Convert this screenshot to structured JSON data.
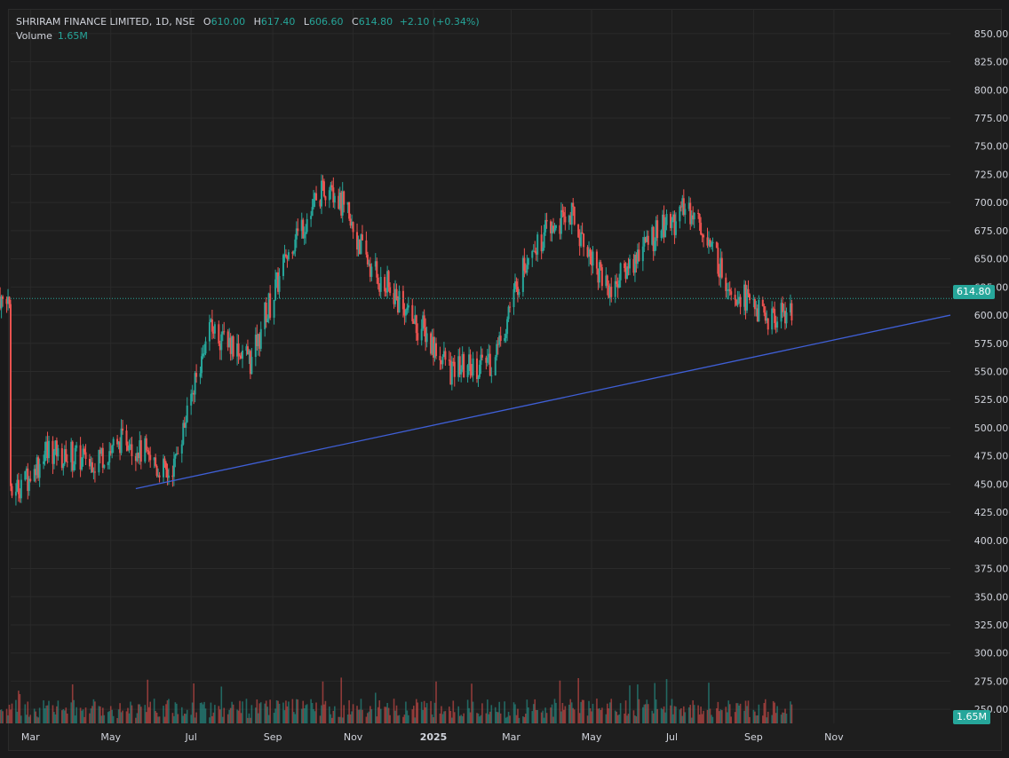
{
  "header": {
    "symbol": "SHRIRAM FINANCE LIMITED, 1D, NSE",
    "o_label": "O",
    "o_value": "610.00",
    "h_label": "H",
    "h_value": "617.40",
    "l_label": "L",
    "l_value": "606.60",
    "c_label": "C",
    "c_value": "614.80",
    "change": "+2.10 (+0.34%)"
  },
  "volume": {
    "label": "Volume",
    "value": "1.65M"
  },
  "badges": {
    "price": "614.80",
    "volume": "1.65M"
  },
  "colors": {
    "up": "#26a69a",
    "down": "#ef5350",
    "trendline": "#3f5fd6",
    "grid": "#2a2a2a"
  },
  "chart_data": {
    "type": "candlestick",
    "y_ticks": [
      "850.00",
      "825.00",
      "800.00",
      "775.00",
      "750.00",
      "725.00",
      "700.00",
      "675.00",
      "650.00",
      "625.00",
      "600.00",
      "575.00",
      "550.00",
      "525.00",
      "500.00",
      "475.00",
      "450.00",
      "425.00",
      "400.00",
      "375.00",
      "350.00",
      "325.00",
      "300.00",
      "275.00",
      "250.00"
    ],
    "x_ticks": [
      {
        "label": "Mar",
        "bold": false
      },
      {
        "label": "May",
        "bold": false
      },
      {
        "label": "Jul",
        "bold": false
      },
      {
        "label": "Sep",
        "bold": false
      },
      {
        "label": "Nov",
        "bold": false
      },
      {
        "label": "2025",
        "bold": true
      },
      {
        "label": "Mar",
        "bold": false
      },
      {
        "label": "May",
        "bold": false
      },
      {
        "label": "Jul",
        "bold": false
      },
      {
        "label": "Sep",
        "bold": false
      },
      {
        "label": "Nov",
        "bold": false
      }
    ],
    "last_price": 614.8,
    "ylim": [
      237.5,
      862.5
    ],
    "trendline": {
      "from": {
        "date": "2024-05-20",
        "price": 446
      },
      "to": {
        "date": "2025-11-30",
        "price": 600
      }
    },
    "monthly_path": [
      {
        "month": "2024-02",
        "price": 440
      },
      {
        "month": "2024-03",
        "price": 480
      },
      {
        "month": "2024-04",
        "price": 470
      },
      {
        "month": "2024-05",
        "price": 490
      },
      {
        "month": "2024-06",
        "price": 455
      },
      {
        "month": "2024-07",
        "price": 590
      },
      {
        "month": "2024-08",
        "price": 560
      },
      {
        "month": "2024-09",
        "price": 665
      },
      {
        "month": "2024-10",
        "price": 720
      },
      {
        "month": "2024-11",
        "price": 640
      },
      {
        "month": "2024-12",
        "price": 600
      },
      {
        "month": "2025-01",
        "price": 550
      },
      {
        "month": "2025-02",
        "price": 560
      },
      {
        "month": "2025-03",
        "price": 660
      },
      {
        "month": "2025-04",
        "price": 690
      },
      {
        "month": "2025-05",
        "price": 620
      },
      {
        "month": "2025-06",
        "price": 670
      },
      {
        "month": "2025-07",
        "price": 695
      },
      {
        "month": "2025-08",
        "price": 625
      },
      {
        "month": "2025-09",
        "price": 595
      },
      {
        "month": "2025-10",
        "price": 615
      }
    ]
  }
}
